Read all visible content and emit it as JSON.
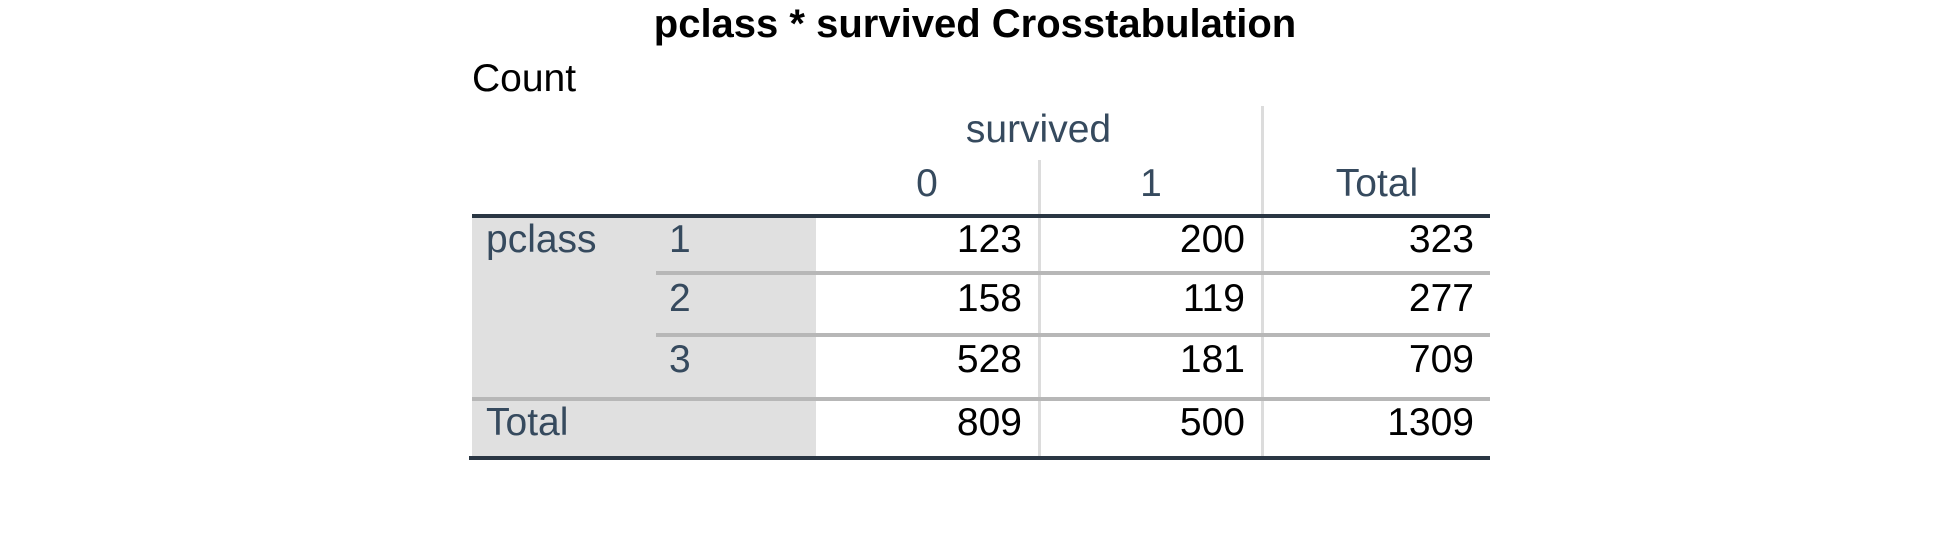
{
  "table": {
    "title": "pclass * survived Crosstabulation",
    "subtitle": "Count",
    "col_group_label": "survived",
    "col_headers": [
      "0",
      "1",
      "Total"
    ],
    "row_group_label": "pclass",
    "rows": [
      {
        "label": "1",
        "values": [
          "123",
          "200",
          "323"
        ]
      },
      {
        "label": "2",
        "values": [
          "158",
          "119",
          "277"
        ]
      },
      {
        "label": "3",
        "values": [
          "528",
          "181",
          "709"
        ]
      }
    ],
    "total_row": {
      "label": "Total",
      "values": [
        "809",
        "500",
        "1309"
      ]
    }
  },
  "colors": {
    "header_text": "#364a5e",
    "row_label_background": "#e0e0e0",
    "rule_dark": "#2a3643",
    "rule_light": "#b7b7b7"
  }
}
